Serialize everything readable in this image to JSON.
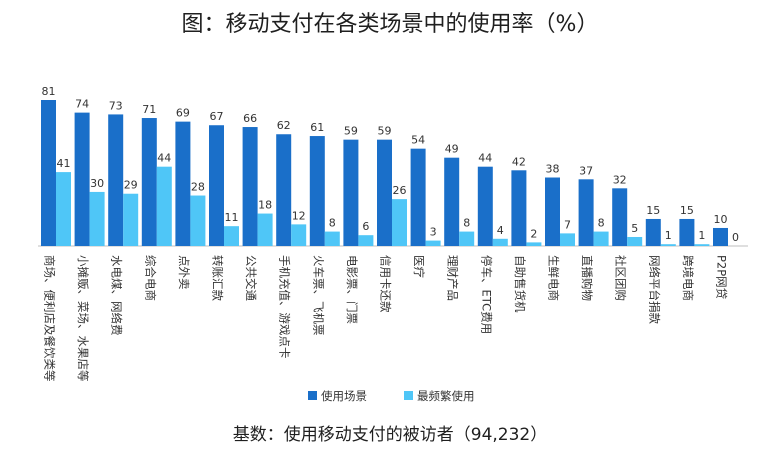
{
  "chart_data": {
    "type": "bar",
    "title": "图：移动支付在各类场景中的使用率（%）",
    "footnote": "基数：使用移动支付的被访者（94,232）",
    "categories": [
      "商场、便利店及餐饮类等",
      "小摊贩、菜场、水果店等",
      "水电煤、网络费",
      "综合电商",
      "点外卖",
      "转账汇款",
      "公共交通",
      "手机充值、游戏点卡",
      "火车票、飞机票",
      "电影票、门票",
      "信用卡还款",
      "医疗",
      "理财产品",
      "停车、ETC费用",
      "自助售货机",
      "生鲜电商",
      "直播购物",
      "社区团购",
      "网络平台捐款",
      "跨境电商",
      "P2P网贷"
    ],
    "series": [
      {
        "name": "使用场景",
        "color": "#1a6fc9",
        "values": [
          81,
          74,
          73,
          71,
          69,
          67,
          66,
          62,
          61,
          59,
          59,
          54,
          49,
          44,
          42,
          38,
          37,
          32,
          15,
          15,
          10
        ]
      },
      {
        "name": "最频繁使用",
        "color": "#4fc6f7",
        "values": [
          41,
          30,
          29,
          44,
          28,
          11,
          18,
          12,
          8,
          6,
          26,
          3,
          8,
          4,
          2,
          7,
          8,
          5,
          1,
          1,
          0
        ]
      }
    ],
    "ylim": [
      0,
      81
    ],
    "legend_position": "bottom",
    "grid": false
  }
}
